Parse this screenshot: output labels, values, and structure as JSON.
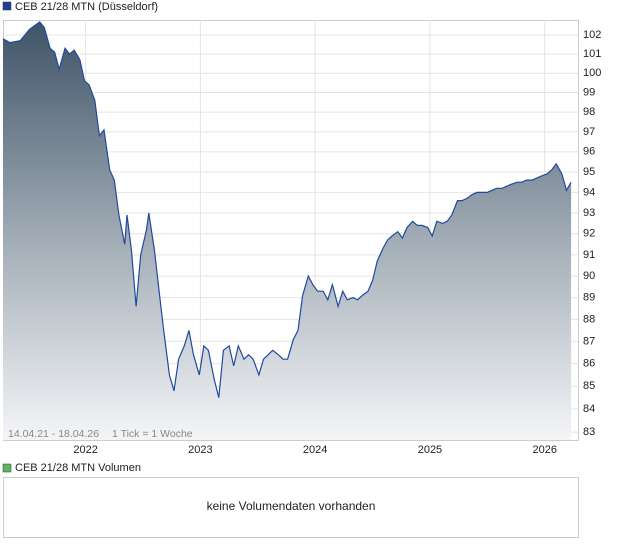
{
  "chart_data": {
    "type": "area",
    "title": "CEB 21/28 MTN (Düsseldorf)",
    "date_range": "14.04.21 - 18.04.26",
    "tick_note": "1 Tick = 1 Woche",
    "log_scale": true,
    "grid": true,
    "x": [
      2021.28,
      2021.34,
      2021.43,
      2021.51,
      2021.6,
      2021.64,
      2021.69,
      2021.73,
      2021.77,
      2021.82,
      2021.86,
      2021.9,
      2021.95,
      2021.99,
      2022.03,
      2022.08,
      2022.12,
      2022.16,
      2022.21,
      2022.25,
      2022.29,
      2022.34,
      2022.36,
      2022.4,
      2022.44,
      2022.48,
      2022.53,
      2022.55,
      2022.6,
      2022.64,
      2022.68,
      2022.73,
      2022.77,
      2022.81,
      2022.86,
      2022.9,
      2022.94,
      2022.99,
      2023.03,
      2023.07,
      2023.12,
      2023.16,
      2023.2,
      2023.25,
      2023.29,
      2023.33,
      2023.38,
      2023.42,
      2023.46,
      2023.51,
      2023.55,
      2023.59,
      2023.63,
      2023.68,
      2023.72,
      2023.76,
      2023.81,
      2023.85,
      2023.89,
      2023.94,
      2023.98,
      2024.02,
      2024.07,
      2024.11,
      2024.15,
      2024.2,
      2024.24,
      2024.28,
      2024.33,
      2024.37,
      2024.41,
      2024.46,
      2024.5,
      2024.54,
      2024.59,
      2024.63,
      2024.67,
      2024.72,
      2024.76,
      2024.8,
      2024.85,
      2024.89,
      2024.93,
      2024.98,
      2025.02,
      2025.06,
      2025.11,
      2025.15,
      2025.19,
      2025.24,
      2025.28,
      2025.32,
      2025.37,
      2025.41,
      2025.45,
      2025.5,
      2025.54,
      2025.58,
      2025.63,
      2025.67,
      2025.71,
      2025.76,
      2025.8,
      2025.84,
      2025.89,
      2025.93,
      2025.97,
      2026.02,
      2026.06,
      2026.1,
      2026.15,
      2026.19,
      2026.23
    ],
    "series": [
      {
        "name": "CEB 21/28 MTN (Düsseldorf)",
        "color": "#1f4a9e",
        "values": [
          101.8,
          101.6,
          101.7,
          102.3,
          102.7,
          102.4,
          101.3,
          101.1,
          100.2,
          101.3,
          101.0,
          101.2,
          100.7,
          99.6,
          99.4,
          98.6,
          96.8,
          97.1,
          95.1,
          94.6,
          92.9,
          91.5,
          92.9,
          91.2,
          88.6,
          91.0,
          92.2,
          93.0,
          91.2,
          89.3,
          87.5,
          85.5,
          84.8,
          86.2,
          86.8,
          87.5,
          86.4,
          85.5,
          86.8,
          86.6,
          85.3,
          84.5,
          86.6,
          86.8,
          85.9,
          86.8,
          86.2,
          86.4,
          86.2,
          85.5,
          86.2,
          86.4,
          86.6,
          86.4,
          86.2,
          86.2,
          87.1,
          87.5,
          89.1,
          90.0,
          89.6,
          89.3,
          89.3,
          88.9,
          89.6,
          88.6,
          89.3,
          88.9,
          89.0,
          88.9,
          89.1,
          89.3,
          89.8,
          90.7,
          91.3,
          91.7,
          91.9,
          92.1,
          91.8,
          92.3,
          92.6,
          92.4,
          92.4,
          92.3,
          91.9,
          92.6,
          92.5,
          92.6,
          92.9,
          93.6,
          93.6,
          93.7,
          93.9,
          94.0,
          94.0,
          94.0,
          94.1,
          94.2,
          94.2,
          94.3,
          94.4,
          94.5,
          94.5,
          94.6,
          94.6,
          94.7,
          94.8,
          94.9,
          95.1,
          95.4,
          94.9,
          94.1,
          94.5
        ]
      }
    ],
    "xlim": [
      2021.28,
      2026.29
    ],
    "xticks": [
      2022,
      2023,
      2024,
      2025,
      2026
    ],
    "ylim": [
      82.66,
      102.8
    ],
    "yticks": [
      83,
      84,
      85,
      86,
      87,
      88,
      89,
      90,
      91,
      92,
      93,
      94,
      95,
      96,
      97,
      98,
      99,
      100,
      101,
      102
    ]
  },
  "volume_panel": {
    "title": "CEB 21/28 MTN Volumen",
    "color": "#5cb85c",
    "message": "keine Volumendaten vorhanden"
  }
}
